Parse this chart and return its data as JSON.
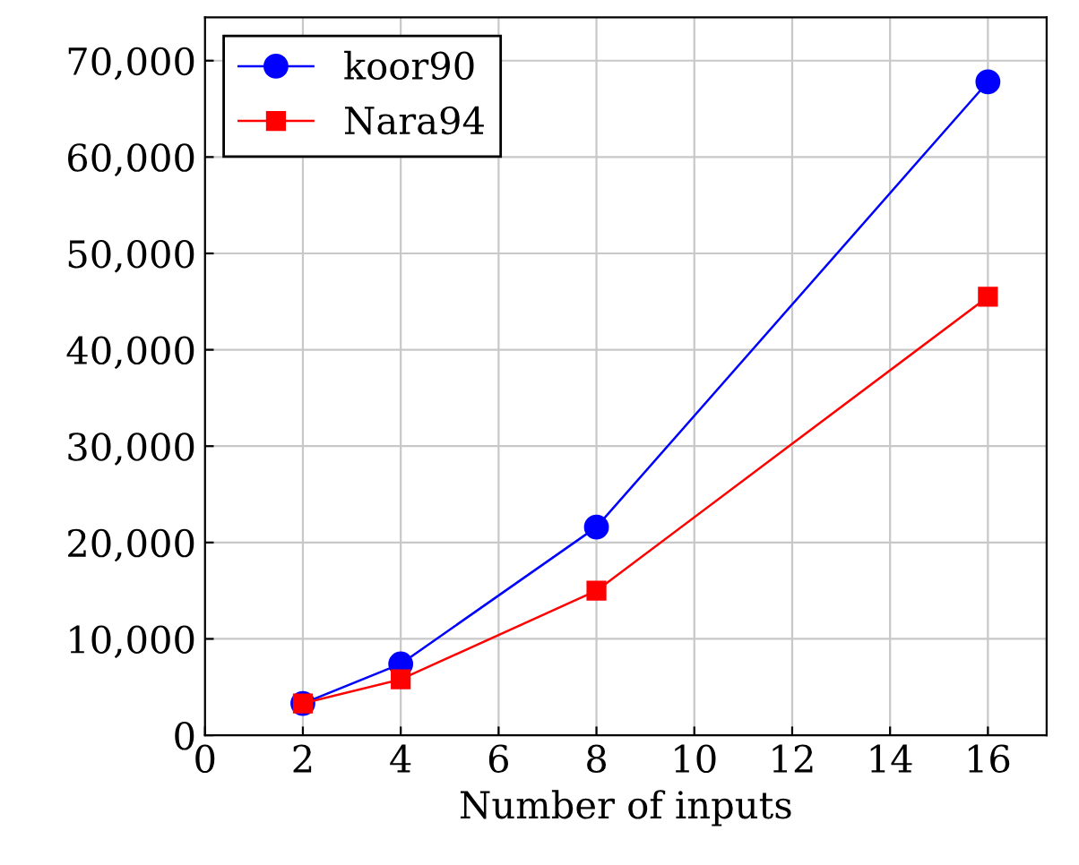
{
  "chart_data": {
    "type": "line",
    "xlabel": "Number of inputs",
    "x": [
      2,
      4,
      8,
      16
    ],
    "series": [
      {
        "name": "koor90",
        "color": "#0000ff",
        "values": [
          3300,
          7400,
          21600,
          67800
        ],
        "marker": "circle"
      },
      {
        "name": "Nara94",
        "color": "#ff0000",
        "values": [
          3300,
          5800,
          15000,
          45500
        ],
        "marker": "square"
      }
    ],
    "xlim": [
      0,
      17.2
    ],
    "xticks": [
      0,
      2,
      4,
      6,
      8,
      10,
      12,
      14,
      16
    ],
    "ylim": [
      0,
      74500
    ],
    "yticks": [
      {
        "value": 0,
        "label": "0"
      },
      {
        "value": 10000,
        "label": "10,000"
      },
      {
        "value": 20000,
        "label": "20,000"
      },
      {
        "value": 30000,
        "label": "30,000"
      },
      {
        "value": 40000,
        "label": "40,000"
      },
      {
        "value": 50000,
        "label": "50,000"
      },
      {
        "value": 60000,
        "label": "60,000"
      },
      {
        "value": 70000,
        "label": "70,000"
      }
    ],
    "grid": true,
    "legend": "top left",
    "line_style": "solid"
  }
}
